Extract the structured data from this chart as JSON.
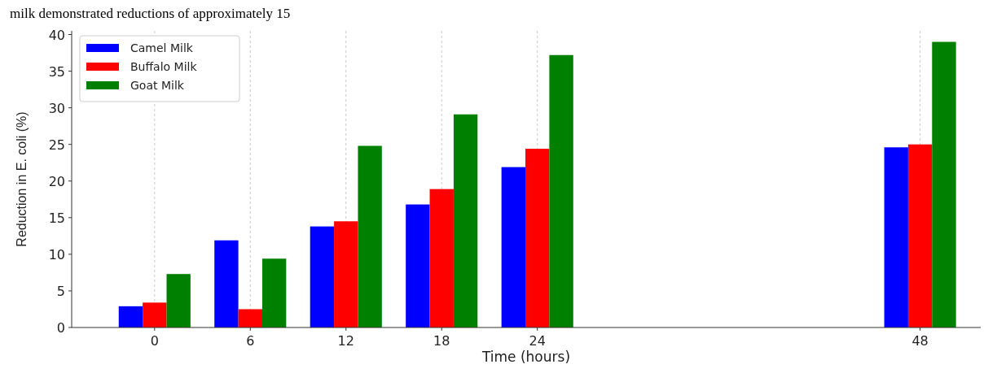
{
  "chart_data": {
    "type": "bar",
    "x": [
      0,
      6,
      12,
      18,
      24,
      48
    ],
    "xlabel": "Time (hours)",
    "ylabel": "Reduction in E. coli (%)",
    "annotations": [
      "milk demonstrated reductions of approximately 15"
    ],
    "xlim": [
      -5.2,
      51.8
    ],
    "ylim": [
      0,
      40.5
    ],
    "xticks": [
      0,
      6,
      12,
      18,
      24,
      48
    ],
    "yticks": [
      0,
      5,
      10,
      15,
      20,
      25,
      30,
      35,
      40
    ],
    "grid": "x",
    "legend": "top left",
    "series": [
      {
        "name": "Camel Milk",
        "color": "#0000ff",
        "values": [
          2.9,
          11.9,
          13.8,
          16.8,
          21.9,
          24.6
        ]
      },
      {
        "name": "Buffalo Milk",
        "color": "#ff0000",
        "values": [
          3.4,
          2.5,
          14.5,
          18.9,
          24.4,
          25.0
        ]
      },
      {
        "name": "Goat Milk",
        "color": "#008000",
        "values": [
          7.3,
          9.4,
          24.8,
          29.1,
          37.2,
          39.0
        ]
      }
    ]
  }
}
